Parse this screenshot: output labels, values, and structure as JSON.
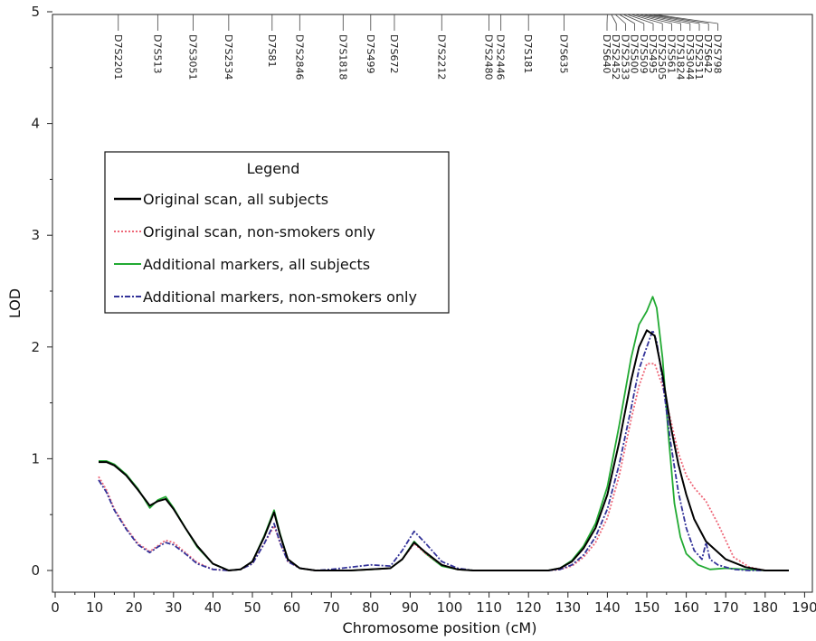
{
  "chart_data": {
    "type": "line",
    "xlabel": "Chromosome position (cM)",
    "ylabel": "LOD",
    "xlim": [
      0,
      195
    ],
    "ylim": [
      0,
      5
    ],
    "x_ticks": [
      0,
      10,
      20,
      30,
      40,
      50,
      60,
      70,
      80,
      90,
      100,
      110,
      120,
      130,
      140,
      150,
      160,
      170,
      180,
      190
    ],
    "y_ticks": [
      0,
      1,
      2,
      3,
      4,
      5
    ],
    "legend": {
      "title": "Legend",
      "entries": [
        {
          "label": "Original scan, all subjects",
          "color": "#000000",
          "dash": "solid"
        },
        {
          "label": "Original scan, non-smokers only",
          "color": "#ee6677",
          "dash": "dotted"
        },
        {
          "label": "Additional markers, all subjects",
          "color": "#22aa33",
          "dash": "solid"
        },
        {
          "label": "Additional markers, non-smokers only",
          "color": "#333399",
          "dash": "dashdot"
        }
      ]
    },
    "markers": [
      {
        "name": "D7S2201",
        "pos": 16
      },
      {
        "name": "D7S513",
        "pos": 26
      },
      {
        "name": "D7S3051",
        "pos": 35
      },
      {
        "name": "D7S2534",
        "pos": 44
      },
      {
        "name": "D7S81",
        "pos": 55
      },
      {
        "name": "D7S2846",
        "pos": 62
      },
      {
        "name": "D7S1818",
        "pos": 73
      },
      {
        "name": "D7S499",
        "pos": 80
      },
      {
        "name": "D7S672",
        "pos": 86
      },
      {
        "name": "D7S2212",
        "pos": 98
      },
      {
        "name": "D7S2480",
        "pos": 110
      },
      {
        "name": "D7S2446",
        "pos": 113
      },
      {
        "name": "D7S181",
        "pos": 120
      },
      {
        "name": "D7S635",
        "pos": 129
      },
      {
        "name": "D7S640",
        "pos": 140
      },
      {
        "name": "D7S2452",
        "pos": 141
      },
      {
        "name": "D7S2533",
        "pos": 142
      },
      {
        "name": "D7S500",
        "pos": 143
      },
      {
        "name": "D7S509",
        "pos": 144
      },
      {
        "name": "D7S495",
        "pos": 145
      },
      {
        "name": "D7S2505",
        "pos": 146
      },
      {
        "name": "D7S561",
        "pos": 147
      },
      {
        "name": "D7S1824",
        "pos": 148
      },
      {
        "name": "D7S3044",
        "pos": 149
      },
      {
        "name": "D7S2511",
        "pos": 150
      },
      {
        "name": "D7S642",
        "pos": 151
      },
      {
        "name": "D7S798",
        "pos": 152
      }
    ],
    "series": [
      {
        "name": "Original scan, all subjects",
        "x": [
          11,
          13,
          15,
          18,
          21,
          24,
          26,
          28,
          30,
          33,
          36,
          40,
          44,
          47,
          50,
          53,
          55.5,
          57,
          59,
          62,
          66,
          70,
          75,
          80,
          85,
          88,
          91,
          94,
          98,
          102,
          106,
          110,
          115,
          120,
          125,
          128,
          131,
          134,
          137,
          140,
          143,
          146,
          148,
          150,
          152,
          154,
          156,
          158,
          160,
          162,
          165,
          170,
          175,
          180,
          186
        ],
        "y": [
          0.97,
          0.97,
          0.94,
          0.85,
          0.72,
          0.58,
          0.62,
          0.64,
          0.55,
          0.38,
          0.22,
          0.06,
          0.0,
          0.01,
          0.08,
          0.3,
          0.52,
          0.32,
          0.1,
          0.02,
          0.0,
          0.0,
          0.0,
          0.01,
          0.02,
          0.1,
          0.25,
          0.16,
          0.05,
          0.01,
          0.0,
          0.0,
          0.0,
          0.0,
          0.0,
          0.02,
          0.08,
          0.2,
          0.38,
          0.68,
          1.15,
          1.7,
          2.0,
          2.15,
          2.1,
          1.75,
          1.3,
          0.95,
          0.68,
          0.46,
          0.26,
          0.1,
          0.03,
          0.0,
          0.0
        ]
      },
      {
        "name": "Original scan, non-smokers only",
        "x": [
          11,
          13,
          15,
          18,
          21,
          24,
          26,
          28,
          30,
          33,
          36,
          40,
          44,
          47,
          50,
          53,
          55.5,
          57,
          59,
          62,
          66,
          70,
          75,
          80,
          85,
          88,
          91,
          94,
          98,
          102,
          106,
          110,
          115,
          120,
          125,
          128,
          131,
          134,
          137,
          140,
          143,
          146,
          148,
          150,
          152,
          154,
          156,
          158,
          160,
          162,
          165,
          168,
          172,
          176,
          180,
          186
        ],
        "y": [
          0.84,
          0.72,
          0.55,
          0.38,
          0.24,
          0.17,
          0.22,
          0.27,
          0.25,
          0.16,
          0.07,
          0.01,
          0.0,
          0.01,
          0.06,
          0.24,
          0.4,
          0.25,
          0.08,
          0.02,
          0.0,
          0.0,
          0.0,
          0.01,
          0.02,
          0.1,
          0.24,
          0.15,
          0.05,
          0.01,
          0.0,
          0.0,
          0.0,
          0.0,
          0.0,
          0.01,
          0.04,
          0.12,
          0.25,
          0.47,
          0.85,
          1.35,
          1.65,
          1.85,
          1.85,
          1.65,
          1.35,
          1.05,
          0.85,
          0.74,
          0.62,
          0.42,
          0.12,
          0.03,
          0.0,
          0.0
        ]
      },
      {
        "name": "Additional markers, all subjects",
        "x": [
          11,
          13,
          15,
          18,
          21,
          24,
          26,
          28,
          30,
          33,
          36,
          40,
          44,
          47,
          50,
          53,
          55.5,
          57,
          59,
          62,
          66,
          70,
          75,
          80,
          85,
          88,
          91,
          94,
          98,
          102,
          106,
          110,
          115,
          120,
          125,
          128,
          131,
          134,
          137,
          140,
          143,
          146,
          148,
          150,
          151.5,
          152.5,
          154,
          155.5,
          157,
          158.5,
          160,
          163,
          166,
          170,
          175,
          180,
          186
        ],
        "y": [
          0.98,
          0.98,
          0.95,
          0.86,
          0.73,
          0.56,
          0.63,
          0.66,
          0.56,
          0.38,
          0.21,
          0.06,
          0.0,
          0.01,
          0.08,
          0.31,
          0.54,
          0.33,
          0.1,
          0.02,
          0.0,
          0.0,
          0.0,
          0.01,
          0.02,
          0.1,
          0.26,
          0.15,
          0.04,
          0.01,
          0.0,
          0.0,
          0.0,
          0.0,
          0.0,
          0.02,
          0.09,
          0.22,
          0.42,
          0.75,
          1.3,
          1.9,
          2.2,
          2.32,
          2.45,
          2.35,
          1.9,
          1.2,
          0.6,
          0.3,
          0.15,
          0.05,
          0.01,
          0.02,
          0.01,
          0.0,
          0.0
        ]
      },
      {
        "name": "Additional markers, non-smokers only",
        "x": [
          11,
          13,
          15,
          18,
          21,
          24,
          26,
          28,
          30,
          33,
          36,
          40,
          44,
          47,
          50,
          53,
          55.5,
          57,
          59,
          62,
          66,
          70,
          75,
          80,
          85,
          88,
          91,
          94,
          98,
          102,
          106,
          110,
          115,
          120,
          125,
          128,
          131,
          134,
          137,
          140,
          143,
          146,
          148,
          150,
          151.5,
          152.5,
          154,
          156,
          158,
          160,
          162,
          164,
          165,
          166,
          168,
          172,
          176,
          180,
          186
        ],
        "y": [
          0.81,
          0.7,
          0.54,
          0.37,
          0.23,
          0.16,
          0.21,
          0.25,
          0.23,
          0.15,
          0.06,
          0.01,
          0.0,
          0.01,
          0.06,
          0.24,
          0.42,
          0.25,
          0.08,
          0.02,
          0.0,
          0.01,
          0.03,
          0.05,
          0.04,
          0.18,
          0.35,
          0.24,
          0.08,
          0.02,
          0.0,
          0.0,
          0.0,
          0.0,
          0.0,
          0.01,
          0.05,
          0.14,
          0.3,
          0.55,
          0.95,
          1.45,
          1.8,
          2.0,
          2.15,
          2.05,
          1.7,
          1.15,
          0.7,
          0.38,
          0.18,
          0.1,
          0.25,
          0.1,
          0.05,
          0.01,
          0.0,
          0.0,
          0.0
        ]
      }
    ],
    "grid": false,
    "legend_placement": "upper-left"
  }
}
